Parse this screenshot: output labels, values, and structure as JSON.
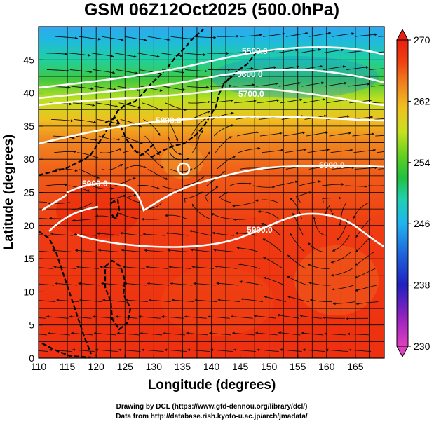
{
  "title": "GSM 06Z12Oct2025 (500.0hPa)",
  "x_axis": {
    "label": "Longitude (degrees)",
    "ticks": [
      "110",
      "115",
      "120",
      "125",
      "130",
      "135",
      "140",
      "145",
      "150",
      "155",
      "160",
      "165"
    ],
    "range": [
      110,
      170
    ]
  },
  "y_axis": {
    "label": "Latitude (degrees)",
    "ticks": [
      "0",
      "5",
      "10",
      "15",
      "20",
      "25",
      "30",
      "35",
      "40",
      "45"
    ],
    "range": [
      0,
      50
    ]
  },
  "colorbar": {
    "ticks": [
      "230",
      "238",
      "246",
      "254",
      "262",
      "270"
    ],
    "range": [
      230,
      270
    ],
    "colors": [
      "#e040c0",
      "#9020c0",
      "#2020c0",
      "#1e64dc",
      "#20b4f0",
      "#20d0b0",
      "#20c040",
      "#60d020",
      "#c8e020",
      "#f0c020",
      "#f08020",
      "#f04010",
      "#e82010"
    ]
  },
  "contours": [
    {
      "label": "5500.0"
    },
    {
      "label": "5600.0"
    },
    {
      "label": "5700.0"
    },
    {
      "label": "5800.0"
    },
    {
      "label": "5900.0"
    },
    {
      "label": "5900.0"
    },
    {
      "label": "5900.0"
    }
  ],
  "credits": {
    "line1": "Drawing by DCL (https://www.gfd-dennou.org/library/dcl/)",
    "line2": "Data from http://database.rish.kyoto-u.ac.jp/arch/jmadata/"
  },
  "chart_data": {
    "type": "map",
    "title": "GSM 06Z12Oct2025 (500.0hPa)",
    "xlabel": "Longitude (degrees)",
    "ylabel": "Latitude (degrees)",
    "xlim": [
      110,
      170
    ],
    "ylim": [
      0,
      50
    ],
    "field": "temperature shading (K) with geopotential height contours (m) and wind streamlines",
    "colorbar_range": [
      230,
      270
    ],
    "height_contours_m": [
      5500,
      5600,
      5700,
      5800,
      5900
    ],
    "grid": true
  }
}
